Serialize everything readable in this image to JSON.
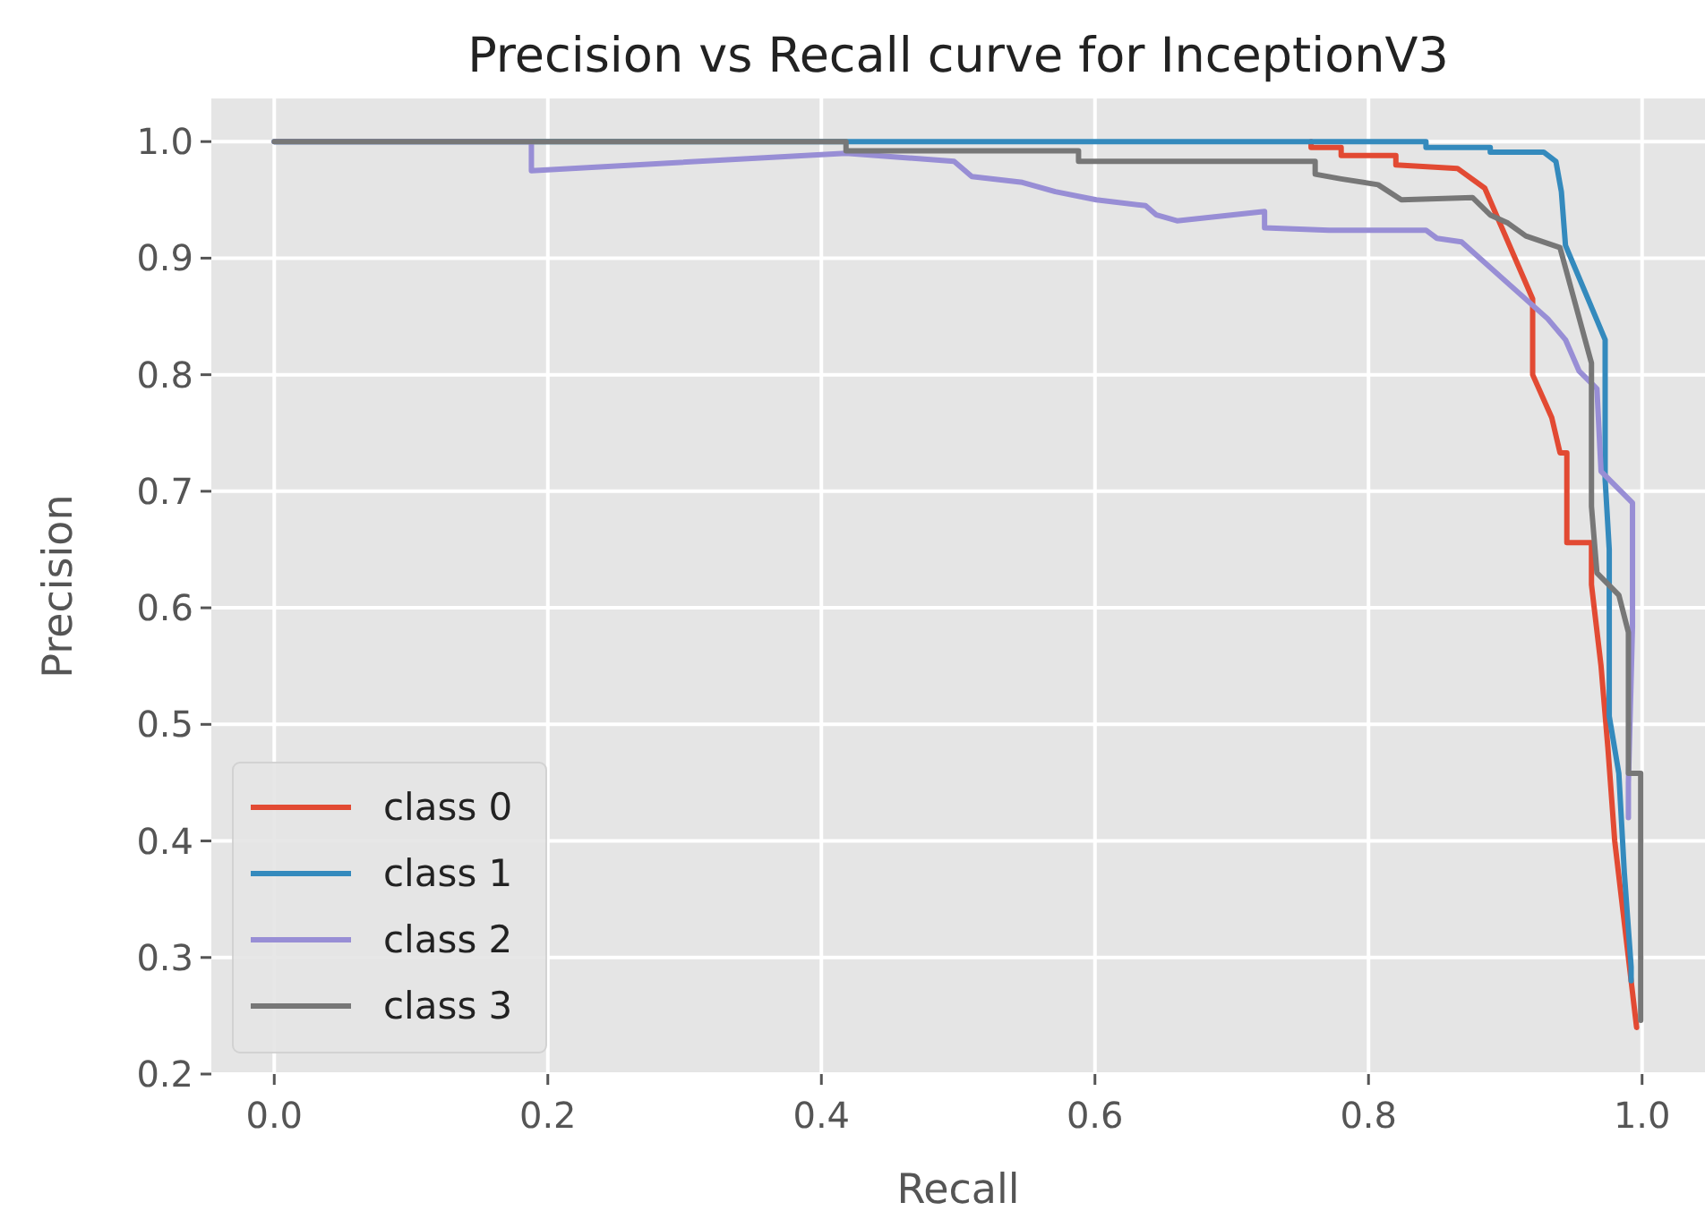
{
  "chart_data": {
    "type": "line",
    "title": "Precision vs Recall curve for InceptionV3",
    "xlabel": "Recall",
    "ylabel": "Precision",
    "xlim": [
      -0.046,
      1.046
    ],
    "ylim": [
      0.2,
      1.037
    ],
    "xticks": [
      {
        "value": 0,
        "label": "0.0"
      },
      {
        "value": 0.2,
        "label": "0.2"
      },
      {
        "value": 0.4,
        "label": "0.4"
      },
      {
        "value": 0.6,
        "label": "0.6"
      },
      {
        "value": 0.8,
        "label": "0.8"
      },
      {
        "value": 1,
        "label": "1.0"
      }
    ],
    "yticks": [
      {
        "value": 0.2,
        "label": "0.2"
      },
      {
        "value": 0.3,
        "label": "0.3"
      },
      {
        "value": 0.4,
        "label": "0.4"
      },
      {
        "value": 0.5,
        "label": "0.5"
      },
      {
        "value": 0.6,
        "label": "0.6"
      },
      {
        "value": 0.7,
        "label": "0.7"
      },
      {
        "value": 0.8,
        "label": "0.8"
      },
      {
        "value": 0.9,
        "label": "0.9"
      },
      {
        "value": 1,
        "label": "1.0"
      }
    ],
    "grid": true,
    "legend": "bottom left",
    "marker": "none",
    "line_style": "solid",
    "series": [
      {
        "name": "class 0",
        "color": "#e24a33",
        "x": [
          0.758,
          0.758,
          0.78,
          0.78,
          0.82,
          0.82,
          0.865,
          0.885,
          0.92,
          0.92,
          0.934,
          0.94,
          0.945,
          0.945,
          0.963,
          0.963,
          0.97,
          0.975,
          0.98,
          0.996
        ],
        "values": [
          1,
          0.995,
          0.995,
          0.988,
          0.988,
          0.98,
          0.977,
          0.96,
          0.865,
          0.8,
          0.763,
          0.733,
          0.733,
          0.656,
          0.656,
          0.62,
          0.55,
          0.48,
          0.4,
          0.24
        ]
      },
      {
        "name": "class 1",
        "color": "#348abd",
        "x": [
          0,
          0.842,
          0.842,
          0.889,
          0.889,
          0.928,
          0.937,
          0.941,
          0.944,
          0.973,
          0.973,
          0.973,
          0.976,
          0.976,
          0.983,
          0.987,
          0.992,
          0.992
        ],
        "values": [
          1,
          1,
          0.995,
          0.995,
          0.991,
          0.991,
          0.983,
          0.957,
          0.911,
          0.83,
          0.788,
          0.71,
          0.65,
          0.507,
          0.458,
          0.373,
          0.292,
          0.28
        ]
      },
      {
        "name": "class 2",
        "color": "#988ed5",
        "x": [
          0,
          0.188,
          0.188,
          0.418,
          0.497,
          0.51,
          0.547,
          0.571,
          0.601,
          0.637,
          0.645,
          0.66,
          0.724,
          0.724,
          0.771,
          0.842,
          0.85,
          0.868,
          0.931,
          0.944,
          0.954,
          0.967,
          0.97,
          0.993,
          0.993,
          0.99,
          0.99
        ],
        "values": [
          1,
          1,
          0.975,
          0.99,
          0.983,
          0.97,
          0.965,
          0.957,
          0.95,
          0.945,
          0.937,
          0.932,
          0.94,
          0.926,
          0.924,
          0.924,
          0.917,
          0.914,
          0.848,
          0.83,
          0.803,
          0.788,
          0.717,
          0.69,
          0.584,
          0.45,
          0.42
        ]
      },
      {
        "name": "class 3",
        "color": "#777777",
        "x": [
          0,
          0.418,
          0.418,
          0.588,
          0.588,
          0.761,
          0.761,
          0.78,
          0.807,
          0.824,
          0.876,
          0.889,
          0.902,
          0.915,
          0.94,
          0.963,
          0.963,
          0.967,
          0.983,
          0.99,
          0.99,
          0.999,
          0.999
        ],
        "values": [
          1,
          1,
          0.992,
          0.992,
          0.983,
          0.983,
          0.972,
          0.968,
          0.963,
          0.95,
          0.952,
          0.937,
          0.93,
          0.919,
          0.909,
          0.81,
          0.687,
          0.63,
          0.611,
          0.579,
          0.458,
          0.458,
          0.246
        ]
      }
    ]
  }
}
